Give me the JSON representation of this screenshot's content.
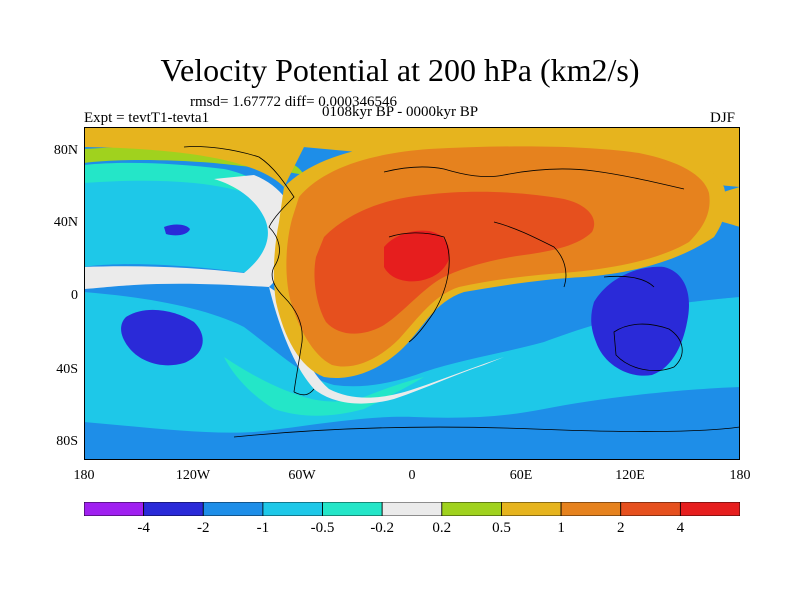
{
  "title": "Velocity Potential at 200 hPa (km2/s)",
  "rmsd_line": "rmsd= 1.67772 diff= 0.000346546",
  "subtitle": "0108kyr BP - 0000kyr BP",
  "expt": "Expt = tevtT1-tevta1",
  "season": "DJF",
  "lat_labels": [
    "80N",
    "40N",
    "0",
    "40S",
    "80S"
  ],
  "lon_labels": [
    "180",
    "120W",
    "60W",
    "0",
    "60E",
    "120E",
    "180"
  ],
  "colorbar": {
    "colors": [
      "#a020f0",
      "#2a2ad8",
      "#1e8ee8",
      "#1ec8e8",
      "#24e6c8",
      "#ebebeb",
      "#a0d21e",
      "#e6b41e",
      "#e6821e",
      "#e6501e",
      "#e61e1e"
    ],
    "labels": [
      "-4",
      "-2",
      "-1",
      "-0.5",
      "-0.2",
      "0.2",
      "0.5",
      "1",
      "2",
      "4"
    ]
  },
  "map_colors": {
    "ocean_dark_blue": "#2a2ad8",
    "blue": "#1e8ee8",
    "light_blue": "#1ec8e8",
    "cyan": "#24e6c8",
    "white": "#ebebeb",
    "yellow_green": "#a0d21e",
    "gold": "#e6b41e",
    "orange": "#e6821e",
    "red_orange": "#e6501e",
    "red": "#e61e1e"
  }
}
